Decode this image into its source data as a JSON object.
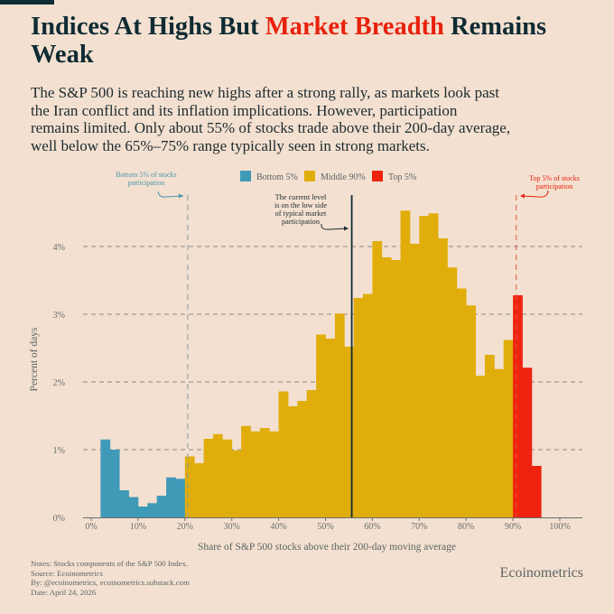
{
  "title": {
    "part1": "Indices At Highs But ",
    "highlight": "Market Breadth",
    "part2": " Remains",
    "line2": "Weak"
  },
  "subtitle_lines": [
    "The S&P 500 is reaching new highs after a strong rally, as markets look past",
    "the Iran conflict and its inflation implications. However, participation",
    "remains limited. Only about 55% of stocks trade above their 200-day average,",
    "well below the 65%–75% range typically seen in strong markets."
  ],
  "colors": {
    "bottom": "#3f9ab8",
    "middle": "#e0ad0b",
    "top": "#ee2410",
    "text": "#0f2b33",
    "accent": "#e8210c"
  },
  "chart_data": {
    "type": "bar",
    "title": "Indices At Highs But Market Breadth Remains Weak",
    "xlabel": "Share of S&P 500 stocks above their 200-day moving average",
    "ylabel": "Percent of days",
    "xlim": [
      0,
      100
    ],
    "ylim": [
      0,
      4.7
    ],
    "xticks": [
      "0%",
      "10%",
      "20%",
      "30%",
      "40%",
      "50%",
      "60%",
      "70%",
      "80%",
      "90%",
      "100%"
    ],
    "yticks": [
      "0%",
      "1%",
      "2%",
      "3%",
      "4%"
    ],
    "grid": "horizontal dashed",
    "legend_position": "top-center",
    "bin_width": 2,
    "series": [
      {
        "name": "Bottom 5%",
        "bin_starts": [
          2,
          4,
          6,
          8,
          10,
          12,
          14,
          16,
          18
        ],
        "values": [
          1.15,
          1.0,
          0.4,
          0.3,
          0.16,
          0.21,
          0.32,
          0.59,
          0.57
        ]
      },
      {
        "name": "Middle 90%",
        "bin_starts": [
          20,
          22,
          24,
          26,
          28,
          30,
          32,
          34,
          36,
          38,
          40,
          42,
          44,
          46,
          48,
          50,
          52,
          54,
          56,
          58,
          60,
          62,
          64,
          66,
          68,
          70,
          72,
          74,
          76,
          78,
          80,
          82,
          84,
          86,
          88
        ],
        "values": [
          0.9,
          0.8,
          1.16,
          1.23,
          1.15,
          0.99,
          1.35,
          1.27,
          1.32,
          1.27,
          1.86,
          1.64,
          1.72,
          1.88,
          2.7,
          2.64,
          3.01,
          2.52,
          3.24,
          3.3,
          4.08,
          3.84,
          3.8,
          4.53,
          4.04,
          4.45,
          4.49,
          4.12,
          3.69,
          3.38,
          3.13,
          2.09,
          2.4,
          2.19,
          2.62
        ]
      },
      {
        "name": "Top 5%",
        "bin_starts": [
          90,
          92,
          94
        ],
        "values": [
          3.28,
          2.21,
          0.76
        ]
      }
    ],
    "reference_lines": [
      {
        "name": "bottom-5",
        "x": 20.6,
        "label": "Bottom 5% of stocks participation"
      },
      {
        "name": "current",
        "x": 55.6,
        "label": "The current level is on the low side of typical market participation"
      },
      {
        "name": "top-5",
        "x": 90.7,
        "label": "Top 5% of stocks participation"
      }
    ],
    "annotations": {
      "bottom_lines": [
        "Bottom 5% of stocks",
        "participation"
      ],
      "top_lines": [
        "Top 5% of stocks",
        "participation"
      ],
      "current_lines": [
        "The current level",
        "is on the low side",
        "of typical market",
        "participation"
      ]
    }
  },
  "footer": {
    "notes": "Notes: Stocks components of the S&P 500 Index.",
    "source": "Source: Ecoinometrics",
    "by": "By: @ecoinometrics, ecoinometrics.substack.com",
    "date": "Date: April 24, 2026"
  },
  "brand": "Ecoinometrics"
}
